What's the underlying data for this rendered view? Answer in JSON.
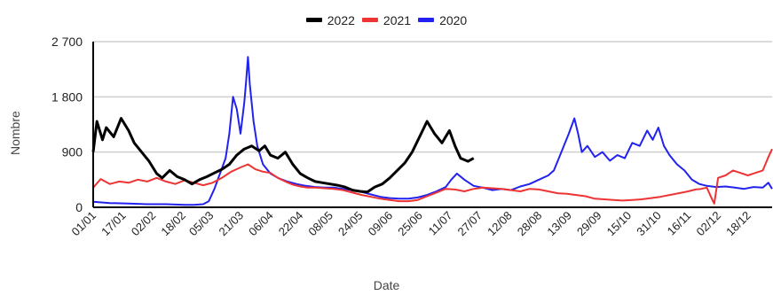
{
  "chart_data": {
    "type": "line",
    "xlabel": "Date",
    "ylabel": "Nombre",
    "ylim": [
      0,
      2700
    ],
    "yticks": [
      0,
      900,
      1800,
      2700
    ],
    "ytick_labels": [
      "0",
      "900",
      "1 800",
      "2 700"
    ],
    "x_domain": [
      1,
      365
    ],
    "xticks": [
      {
        "day": 1,
        "label": "01/01"
      },
      {
        "day": 17,
        "label": "17/01"
      },
      {
        "day": 33,
        "label": "02/02"
      },
      {
        "day": 49,
        "label": "18/02"
      },
      {
        "day": 64,
        "label": "05/03"
      },
      {
        "day": 80,
        "label": "21/03"
      },
      {
        "day": 96,
        "label": "06/04"
      },
      {
        "day": 112,
        "label": "22/04"
      },
      {
        "day": 128,
        "label": "08/05"
      },
      {
        "day": 144,
        "label": "24/05"
      },
      {
        "day": 160,
        "label": "09/06"
      },
      {
        "day": 176,
        "label": "25/06"
      },
      {
        "day": 192,
        "label": "11/07"
      },
      {
        "day": 208,
        "label": "27/07"
      },
      {
        "day": 224,
        "label": "12/08"
      },
      {
        "day": 240,
        "label": "28/08"
      },
      {
        "day": 256,
        "label": "13/09"
      },
      {
        "day": 272,
        "label": "29/09"
      },
      {
        "day": 288,
        "label": "15/10"
      },
      {
        "day": 304,
        "label": "31/10"
      },
      {
        "day": 320,
        "label": "16/11"
      },
      {
        "day": 336,
        "label": "02/12"
      },
      {
        "day": 352,
        "label": "18/12"
      }
    ],
    "grid": true,
    "legend_position": "top",
    "series": [
      {
        "name": "2022",
        "color": "#000000",
        "points": [
          [
            1,
            900
          ],
          [
            3,
            1400
          ],
          [
            6,
            1100
          ],
          [
            8,
            1300
          ],
          [
            12,
            1150
          ],
          [
            16,
            1450
          ],
          [
            20,
            1250
          ],
          [
            23,
            1050
          ],
          [
            27,
            900
          ],
          [
            31,
            750
          ],
          [
            35,
            550
          ],
          [
            38,
            480
          ],
          [
            42,
            600
          ],
          [
            46,
            500
          ],
          [
            50,
            450
          ],
          [
            54,
            380
          ],
          [
            58,
            450
          ],
          [
            62,
            500
          ],
          [
            66,
            560
          ],
          [
            70,
            620
          ],
          [
            74,
            700
          ],
          [
            78,
            850
          ],
          [
            82,
            950
          ],
          [
            86,
            1000
          ],
          [
            90,
            920
          ],
          [
            93,
            1000
          ],
          [
            96,
            850
          ],
          [
            100,
            800
          ],
          [
            104,
            900
          ],
          [
            108,
            700
          ],
          [
            112,
            550
          ],
          [
            116,
            480
          ],
          [
            120,
            420
          ],
          [
            124,
            400
          ],
          [
            128,
            380
          ],
          [
            132,
            360
          ],
          [
            136,
            330
          ],
          [
            140,
            280
          ],
          [
            144,
            260
          ],
          [
            148,
            250
          ],
          [
            152,
            330
          ],
          [
            156,
            380
          ],
          [
            160,
            480
          ],
          [
            164,
            600
          ],
          [
            168,
            720
          ],
          [
            172,
            900
          ],
          [
            176,
            1150
          ],
          [
            180,
            1400
          ],
          [
            184,
            1200
          ],
          [
            188,
            1050
          ],
          [
            192,
            1250
          ],
          [
            195,
            1000
          ],
          [
            198,
            800
          ],
          [
            202,
            750
          ],
          [
            205,
            800
          ]
        ]
      },
      {
        "name": "2021",
        "color": "#ee3333",
        "points": [
          [
            1,
            320
          ],
          [
            5,
            460
          ],
          [
            10,
            380
          ],
          [
            15,
            420
          ],
          [
            20,
            400
          ],
          [
            25,
            450
          ],
          [
            30,
            420
          ],
          [
            35,
            480
          ],
          [
            40,
            420
          ],
          [
            45,
            380
          ],
          [
            50,
            440
          ],
          [
            55,
            400
          ],
          [
            60,
            360
          ],
          [
            65,
            400
          ],
          [
            70,
            480
          ],
          [
            75,
            580
          ],
          [
            80,
            650
          ],
          [
            84,
            700
          ],
          [
            88,
            620
          ],
          [
            92,
            580
          ],
          [
            96,
            560
          ],
          [
            100,
            480
          ],
          [
            104,
            420
          ],
          [
            108,
            370
          ],
          [
            112,
            340
          ],
          [
            116,
            320
          ],
          [
            120,
            320
          ],
          [
            125,
            310
          ],
          [
            130,
            300
          ],
          [
            135,
            280
          ],
          [
            140,
            240
          ],
          [
            145,
            200
          ],
          [
            150,
            170
          ],
          [
            155,
            140
          ],
          [
            160,
            120
          ],
          [
            165,
            100
          ],
          [
            170,
            100
          ],
          [
            175,
            120
          ],
          [
            180,
            180
          ],
          [
            185,
            240
          ],
          [
            190,
            300
          ],
          [
            195,
            290
          ],
          [
            200,
            260
          ],
          [
            205,
            300
          ],
          [
            210,
            320
          ],
          [
            215,
            310
          ],
          [
            220,
            300
          ],
          [
            225,
            280
          ],
          [
            230,
            260
          ],
          [
            235,
            300
          ],
          [
            240,
            290
          ],
          [
            245,
            260
          ],
          [
            250,
            230
          ],
          [
            255,
            220
          ],
          [
            260,
            200
          ],
          [
            265,
            180
          ],
          [
            270,
            140
          ],
          [
            275,
            130
          ],
          [
            280,
            120
          ],
          [
            285,
            110
          ],
          [
            290,
            120
          ],
          [
            295,
            130
          ],
          [
            300,
            150
          ],
          [
            305,
            170
          ],
          [
            310,
            200
          ],
          [
            315,
            230
          ],
          [
            320,
            260
          ],
          [
            324,
            290
          ],
          [
            327,
            300
          ],
          [
            330,
            320
          ],
          [
            333,
            120
          ],
          [
            334,
            60
          ],
          [
            336,
            480
          ],
          [
            340,
            520
          ],
          [
            344,
            600
          ],
          [
            348,
            560
          ],
          [
            352,
            520
          ],
          [
            356,
            560
          ],
          [
            360,
            600
          ],
          [
            363,
            820
          ],
          [
            365,
            950
          ]
        ]
      },
      {
        "name": "2020",
        "color": "#2222ee",
        "points": [
          [
            1,
            90
          ],
          [
            10,
            70
          ],
          [
            20,
            60
          ],
          [
            30,
            50
          ],
          [
            40,
            50
          ],
          [
            50,
            40
          ],
          [
            55,
            40
          ],
          [
            60,
            50
          ],
          [
            63,
            100
          ],
          [
            66,
            300
          ],
          [
            69,
            550
          ],
          [
            72,
            800
          ],
          [
            74,
            1200
          ],
          [
            76,
            1800
          ],
          [
            78,
            1600
          ],
          [
            80,
            1200
          ],
          [
            82,
            1700
          ],
          [
            83,
            2050
          ],
          [
            84,
            2450
          ],
          [
            85,
            2000
          ],
          [
            87,
            1400
          ],
          [
            89,
            1000
          ],
          [
            92,
            700
          ],
          [
            96,
            550
          ],
          [
            100,
            480
          ],
          [
            105,
            420
          ],
          [
            110,
            380
          ],
          [
            115,
            350
          ],
          [
            120,
            330
          ],
          [
            125,
            320
          ],
          [
            130,
            320
          ],
          [
            135,
            300
          ],
          [
            140,
            280
          ],
          [
            145,
            250
          ],
          [
            150,
            210
          ],
          [
            155,
            170
          ],
          [
            160,
            150
          ],
          [
            165,
            140
          ],
          [
            170,
            140
          ],
          [
            175,
            160
          ],
          [
            180,
            200
          ],
          [
            185,
            260
          ],
          [
            190,
            330
          ],
          [
            193,
            450
          ],
          [
            196,
            550
          ],
          [
            200,
            450
          ],
          [
            205,
            350
          ],
          [
            210,
            320
          ],
          [
            215,
            280
          ],
          [
            220,
            300
          ],
          [
            225,
            280
          ],
          [
            230,
            340
          ],
          [
            235,
            380
          ],
          [
            240,
            450
          ],
          [
            245,
            520
          ],
          [
            248,
            600
          ],
          [
            252,
            900
          ],
          [
            256,
            1200
          ],
          [
            259,
            1450
          ],
          [
            261,
            1200
          ],
          [
            263,
            900
          ],
          [
            266,
            1000
          ],
          [
            270,
            820
          ],
          [
            274,
            900
          ],
          [
            278,
            760
          ],
          [
            282,
            850
          ],
          [
            286,
            800
          ],
          [
            290,
            1050
          ],
          [
            294,
            1000
          ],
          [
            298,
            1250
          ],
          [
            301,
            1100
          ],
          [
            304,
            1300
          ],
          [
            307,
            1000
          ],
          [
            310,
            850
          ],
          [
            314,
            700
          ],
          [
            318,
            600
          ],
          [
            322,
            450
          ],
          [
            326,
            380
          ],
          [
            330,
            350
          ],
          [
            335,
            330
          ],
          [
            340,
            340
          ],
          [
            345,
            320
          ],
          [
            350,
            300
          ],
          [
            355,
            330
          ],
          [
            360,
            320
          ],
          [
            363,
            400
          ],
          [
            365,
            300
          ]
        ]
      }
    ]
  }
}
